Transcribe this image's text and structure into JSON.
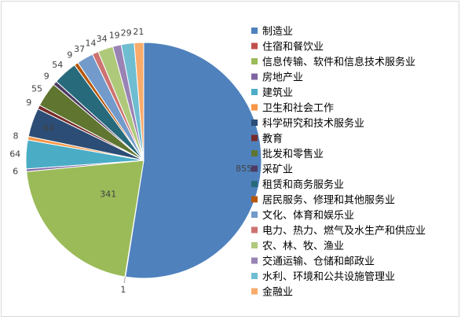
{
  "chart_data": {
    "type": "pie",
    "title": "",
    "legend_position": "right",
    "slices": [
      {
        "label": "制造业",
        "value": 855,
        "display": "855",
        "color": "#4f81bd"
      },
      {
        "label": "住宿和餐饮业",
        "value": 1,
        "display": "1",
        "color": "#c0504d"
      },
      {
        "label": "信息传输、软件和信息技术服务业",
        "value": 341,
        "display": "341",
        "color": "#9bbb59"
      },
      {
        "label": "房地产业",
        "value": 6,
        "display": "6",
        "color": "#8064a2"
      },
      {
        "label": "建筑业",
        "value": 64,
        "display": "64",
        "color": "#4bacc6"
      },
      {
        "label": "卫生和社会工作",
        "value": 8,
        "display": "8",
        "color": "#f79646"
      },
      {
        "label": "科学研究和技术服务业",
        "value": 64,
        "display": "64",
        "color": "#2c4d75"
      },
      {
        "label": "教育",
        "value": 9,
        "display": "9",
        "color": "#772c2a"
      },
      {
        "label": "批发和零售业",
        "value": 55,
        "display": "55",
        "color": "#5f7530"
      },
      {
        "label": "采矿业",
        "value": 9,
        "display": "9",
        "color": "#4d3b62"
      },
      {
        "label": "租赁和商务服务业",
        "value": 54,
        "display": "54",
        "color": "#276a7c"
      },
      {
        "label": "居民服务、修理和其他服务业",
        "value": 9,
        "display": "9",
        "color": "#b65708"
      },
      {
        "label": "文化、体育和娱乐业",
        "value": 37,
        "display": "37",
        "color": "#729aca"
      },
      {
        "label": "电力、热力、燃气及水生产和供应业",
        "value": 14,
        "display": "14",
        "color": "#cd7371"
      },
      {
        "label": "农、林、牧、渔业",
        "value": 34,
        "display": "34",
        "color": "#afc97a"
      },
      {
        "label": "交通运输、仓储和邮政业",
        "value": 19,
        "display": "19",
        "color": "#9983b5"
      },
      {
        "label": "水利、环境和公共设施管理业",
        "value": 29,
        "display": "29",
        "color": "#6fbdd1"
      },
      {
        "label": "金融业",
        "value": 21,
        "display": "21",
        "color": "#f9ab6b"
      }
    ]
  }
}
